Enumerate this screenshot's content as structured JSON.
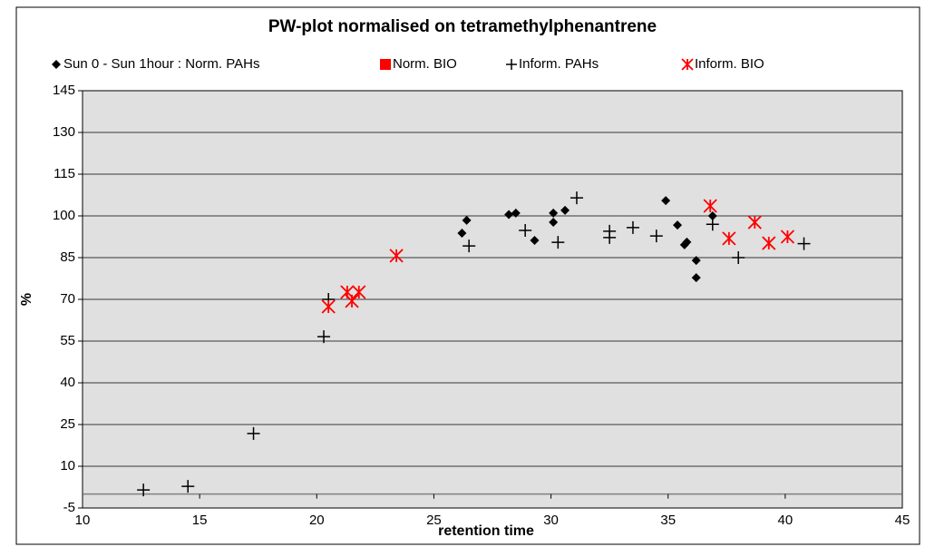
{
  "chart_data": {
    "type": "scatter",
    "title": "PW-plot normalised on tetramethylphenantrene",
    "x_label": "retention time",
    "y_label": "%",
    "xlim": [
      10,
      45
    ],
    "xticks": [
      10,
      15,
      20,
      25,
      30,
      35,
      40,
      45
    ],
    "ylim": [
      -5,
      145
    ],
    "yticks": [
      -5,
      10,
      25,
      40,
      55,
      70,
      85,
      100,
      115,
      130,
      145
    ],
    "grid": true,
    "legend": "top",
    "series": [
      {
        "name": "Sun 0  -  Sun 1hour :  Norm. PAHs",
        "color": "#000000",
        "marker": "diamond",
        "x": [
          26.2,
          26.4,
          28.2,
          28.5,
          29.3,
          30.1,
          30.1,
          30.6,
          34.9,
          35.4,
          35.7,
          35.8,
          36.2,
          36.2,
          36.9
        ],
        "values": [
          93.8,
          98.4,
          100.5,
          101,
          91.2,
          101,
          97.7,
          102,
          105.5,
          96.7,
          89.6,
          90.6,
          84,
          77.8,
          100
        ]
      },
      {
        "name": "Norm. BIO",
        "color": "#ff0000",
        "marker": "square",
        "x": [],
        "values": []
      },
      {
        "name": "Inform. PAHs",
        "color": "#000000",
        "marker": "plus",
        "x": [
          12.6,
          14.5,
          17.3,
          20.3,
          20.5,
          26.5,
          28.9,
          30.3,
          31.1,
          32.5,
          32.5,
          33.5,
          34.5,
          36.9,
          38.0,
          40.8
        ],
        "values": [
          1.5,
          2.8,
          21.8,
          56.6,
          70,
          89.2,
          94.8,
          90.5,
          106.5,
          94.5,
          92.2,
          95.8,
          92.8,
          97,
          85,
          90
        ]
      },
      {
        "name": "Inform. BIO",
        "color": "#ff0000",
        "marker": "asterisk",
        "x": [
          20.5,
          21.3,
          21.5,
          21.8,
          23.4,
          36.8,
          37.6,
          38.7,
          39.3,
          40.1
        ],
        "values": [
          67.4,
          72.6,
          69.4,
          72.6,
          85.7,
          103.6,
          91.9,
          97.7,
          90.2,
          92.5
        ]
      }
    ]
  }
}
